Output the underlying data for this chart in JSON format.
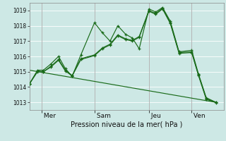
{
  "background_color": "#cde8e5",
  "grid_color": "#b0d8d4",
  "line_color": "#1a6b1a",
  "title": "Pression niveau de la mer( hPa )",
  "ylim": [
    1012.5,
    1019.5
  ],
  "yticks": [
    1013,
    1014,
    1015,
    1016,
    1017,
    1018,
    1019
  ],
  "day_labels": [
    " Mer",
    " Sam",
    " Jeu",
    " Ven"
  ],
  "day_positions": [
    0.065,
    0.335,
    0.615,
    0.835
  ],
  "series1_x": [
    0.0,
    0.042,
    0.072,
    0.11,
    0.15,
    0.185,
    0.22,
    0.265,
    0.335,
    0.375,
    0.415,
    0.455,
    0.495,
    0.53,
    0.565,
    0.615,
    0.65,
    0.685,
    0.725,
    0.77,
    0.835,
    0.87,
    0.91,
    0.96
  ],
  "series1_y": [
    1014.2,
    1015.1,
    1015.1,
    1015.5,
    1016.0,
    1015.2,
    1014.7,
    1016.1,
    1018.2,
    1017.55,
    1017.0,
    1018.0,
    1017.45,
    1017.2,
    1016.5,
    1019.1,
    1018.9,
    1019.2,
    1018.3,
    1016.3,
    1016.4,
    1014.85,
    1013.3,
    1013.0
  ],
  "series2_x": [
    0.0,
    0.042,
    0.072,
    0.11,
    0.15,
    0.185,
    0.22,
    0.265,
    0.335,
    0.375,
    0.415,
    0.455,
    0.495,
    0.53,
    0.565,
    0.615,
    0.65,
    0.685,
    0.725,
    0.77,
    0.835,
    0.87,
    0.91,
    0.96
  ],
  "series2_y": [
    1014.2,
    1015.05,
    1015.0,
    1015.35,
    1015.8,
    1015.1,
    1014.75,
    1015.85,
    1016.1,
    1016.55,
    1016.8,
    1017.4,
    1017.15,
    1017.05,
    1017.3,
    1019.0,
    1018.8,
    1019.15,
    1018.2,
    1016.25,
    1016.3,
    1014.8,
    1013.25,
    1013.0
  ],
  "series3_x": [
    0.0,
    0.042,
    0.072,
    0.11,
    0.15,
    0.185,
    0.22,
    0.265,
    0.335,
    0.375,
    0.415,
    0.455,
    0.495,
    0.53,
    0.565,
    0.615,
    0.65,
    0.685,
    0.725,
    0.77,
    0.835,
    0.87,
    0.91,
    0.96
  ],
  "series3_y": [
    1014.2,
    1015.0,
    1015.0,
    1015.3,
    1015.75,
    1015.05,
    1014.72,
    1015.8,
    1016.05,
    1016.5,
    1016.75,
    1017.35,
    1017.1,
    1017.0,
    1017.25,
    1018.95,
    1018.75,
    1019.1,
    1018.15,
    1016.2,
    1016.25,
    1014.75,
    1013.2,
    1012.98
  ],
  "trend_x": [
    0.0,
    0.96
  ],
  "trend_y": [
    1015.1,
    1013.0
  ],
  "xlim": [
    0.0,
    1.0
  ]
}
